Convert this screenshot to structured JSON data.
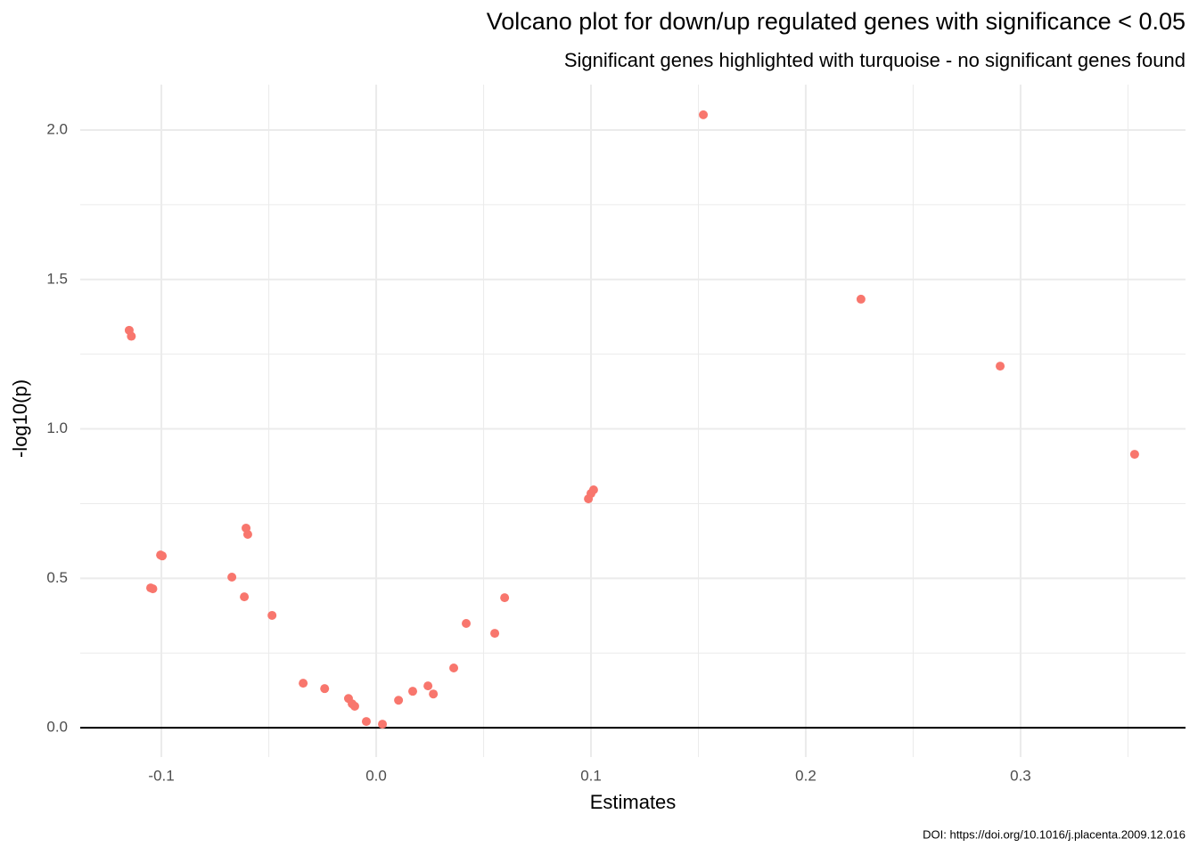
{
  "chart_data": {
    "type": "scatter",
    "title": "Volcano plot for down/up regulated genes with significance < 0.05",
    "subtitle": "Significant genes highlighted with turquoise - no significant genes found",
    "x_label": "Estimates",
    "y_label": "-log10(p)",
    "caption": "DOI: https://doi.org/10.1016/j.placenta.2009.12.016",
    "color": "#f8766d",
    "grid": true,
    "hline": 0,
    "xlim": [
      -0.1378,
      0.3768
    ],
    "ylim": [
      -0.098,
      2.152
    ],
    "xticks": [
      -0.1,
      {
        "value": 0,
        "label": "0.0"
      },
      0.1,
      0.2,
      0.3
    ],
    "yticks": [
      {
        "value": 0,
        "label": "0.0"
      },
      0.5,
      {
        "value": 1,
        "label": "1.0"
      },
      1.5,
      {
        "value": 2,
        "label": "2.0"
      }
    ],
    "x_minor_grid": [
      -0.05,
      0.05,
      0.15,
      0.25,
      0.35
    ],
    "y_minor_grid": [
      0.25,
      0.75,
      1.25,
      1.75
    ],
    "x": [
      -0.115,
      -0.114,
      -0.105,
      -0.104,
      -0.1004,
      -0.0996,
      -0.0672,
      -0.0614,
      -0.0606,
      -0.0598,
      -0.0485,
      -0.034,
      -0.024,
      -0.0129,
      -0.0112,
      -0.01,
      -0.0046,
      0.0029,
      0.0104,
      0.017,
      0.0241,
      0.0266,
      0.0361,
      0.0419,
      0.0552,
      0.0598,
      0.0988,
      0.1,
      0.1012,
      0.1523,
      0.2257,
      0.2905,
      0.3531
    ],
    "y": [
      1.33,
      1.31,
      0.468,
      0.465,
      0.578,
      0.575,
      0.504,
      0.438,
      0.668,
      0.647,
      0.376,
      0.149,
      0.131,
      0.098,
      0.08,
      0.072,
      0.021,
      0.012,
      0.092,
      0.122,
      0.14,
      0.113,
      0.2,
      0.349,
      0.316,
      0.435,
      0.766,
      0.784,
      0.796,
      2.051,
      1.434,
      1.21,
      0.915
    ]
  }
}
